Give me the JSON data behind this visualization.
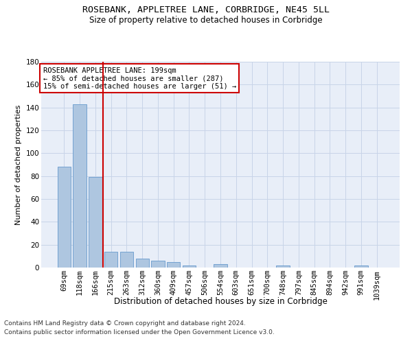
{
  "title": "ROSEBANK, APPLETREE LANE, CORBRIDGE, NE45 5LL",
  "subtitle": "Size of property relative to detached houses in Corbridge",
  "xlabel": "Distribution of detached houses by size in Corbridge",
  "ylabel": "Number of detached properties",
  "footer_line1": "Contains HM Land Registry data © Crown copyright and database right 2024.",
  "footer_line2": "Contains public sector information licensed under the Open Government Licence v3.0.",
  "bar_labels": [
    "69sqm",
    "118sqm",
    "166sqm",
    "215sqm",
    "263sqm",
    "312sqm",
    "360sqm",
    "409sqm",
    "457sqm",
    "506sqm",
    "554sqm",
    "603sqm",
    "651sqm",
    "700sqm",
    "748sqm",
    "797sqm",
    "845sqm",
    "894sqm",
    "942sqm",
    "991sqm",
    "1039sqm"
  ],
  "bar_values": [
    88,
    143,
    79,
    14,
    14,
    8,
    6,
    5,
    2,
    0,
    3,
    0,
    0,
    0,
    2,
    0,
    0,
    0,
    0,
    2,
    0
  ],
  "bar_color": "#aec6e0",
  "bar_edge_color": "#6699cc",
  "vline_x": 2.5,
  "annotation_title": "ROSEBANK APPLETREE LANE: 199sqm",
  "annotation_line1": "← 85% of detached houses are smaller (287)",
  "annotation_line2": "15% of semi-detached houses are larger (51) →",
  "annotation_box_color": "#ffffff",
  "annotation_box_edge": "#cc0000",
  "vline_color": "#cc0000",
  "grid_color": "#c8d4e8",
  "bg_color": "#e8eef8",
  "ylim": [
    0,
    180
  ],
  "yticks": [
    0,
    20,
    40,
    60,
    80,
    100,
    120,
    140,
    160,
    180
  ],
  "title_fontsize": 9.5,
  "subtitle_fontsize": 8.5,
  "xlabel_fontsize": 8.5,
  "ylabel_fontsize": 8,
  "tick_fontsize": 7.5,
  "annotation_fontsize": 7.5,
  "footer_fontsize": 6.5
}
